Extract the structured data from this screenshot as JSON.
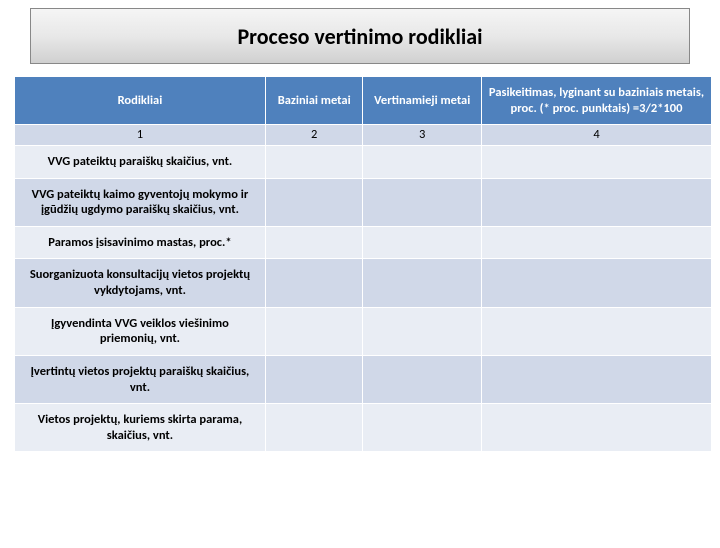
{
  "title": "Proceso vertinimo rodikliai",
  "table": {
    "columns": [
      {
        "label": "Rodikliai",
        "num": "1",
        "width_pct": 36
      },
      {
        "label": "Baziniai metai",
        "num": "2",
        "width_pct": 14
      },
      {
        "label": "Vertinamieji metai",
        "num": "3",
        "width_pct": 17
      },
      {
        "label": "Pasikeitimas, lyginant su baziniais metais, proc. (* proc. punktais) =3/2*100",
        "num": "4",
        "width_pct": 33
      }
    ],
    "rows": [
      {
        "label": "VVG pateiktų paraiškų skaičius, vnt."
      },
      {
        "label": "VVG pateiktų kaimo gyventojų mokymo ir įgūdžių ugdymo paraiškų skaičius, vnt."
      },
      {
        "label": "Paramos įsisavinimo mastas, proc.*"
      },
      {
        "label": "Suorganizuota konsultacijų vietos projektų vykdytojams, vnt."
      },
      {
        "label": "Įgyvendinta VVG veiklos viešinimo priemonių, vnt."
      },
      {
        "label": "Įvertintų vietos projektų paraiškų skaičius, vnt."
      },
      {
        "label": "Vietos projektų, kuriems skirta parama, skaičius, vnt."
      }
    ],
    "header_bg": "#4f81bd",
    "header_fg": "#ffffff",
    "row_odd_bg": "#d0d8e8",
    "row_even_bg": "#e9edf4",
    "border_color": "#ffffff",
    "font_size_pt": 12.5
  }
}
